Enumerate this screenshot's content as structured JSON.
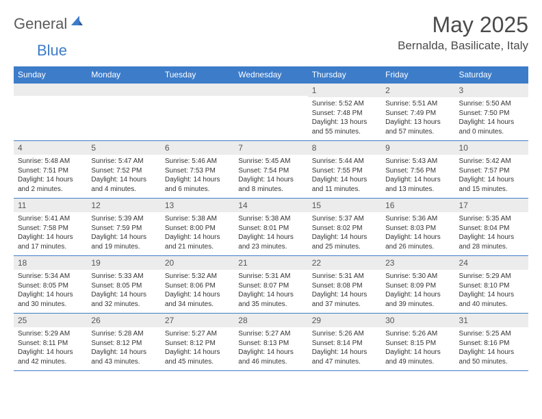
{
  "brand": {
    "part1": "General",
    "part2": "Blue"
  },
  "title": "May 2025",
  "location": "Bernalda, Basilicate, Italy",
  "colors": {
    "header_bg": "#3d7cc9",
    "header_text": "#ffffff",
    "daynum_bg": "#ececec",
    "border": "#3d7cc9",
    "text": "#333333",
    "logo_gray": "#5a5a5a",
    "logo_blue": "#3d7cc9",
    "page_bg": "#ffffff"
  },
  "typography": {
    "title_fontsize": 32,
    "location_fontsize": 17,
    "dayhead_fontsize": 12,
    "daynum_fontsize": 12,
    "body_fontsize": 10
  },
  "day_names": [
    "Sunday",
    "Monday",
    "Tuesday",
    "Wednesday",
    "Thursday",
    "Friday",
    "Saturday"
  ],
  "weeks": [
    [
      {
        "n": "",
        "sunrise": "",
        "sunset": "",
        "daylight": ""
      },
      {
        "n": "",
        "sunrise": "",
        "sunset": "",
        "daylight": ""
      },
      {
        "n": "",
        "sunrise": "",
        "sunset": "",
        "daylight": ""
      },
      {
        "n": "",
        "sunrise": "",
        "sunset": "",
        "daylight": ""
      },
      {
        "n": "1",
        "sunrise": "Sunrise: 5:52 AM",
        "sunset": "Sunset: 7:48 PM",
        "daylight": "Daylight: 13 hours and 55 minutes."
      },
      {
        "n": "2",
        "sunrise": "Sunrise: 5:51 AM",
        "sunset": "Sunset: 7:49 PM",
        "daylight": "Daylight: 13 hours and 57 minutes."
      },
      {
        "n": "3",
        "sunrise": "Sunrise: 5:50 AM",
        "sunset": "Sunset: 7:50 PM",
        "daylight": "Daylight: 14 hours and 0 minutes."
      }
    ],
    [
      {
        "n": "4",
        "sunrise": "Sunrise: 5:48 AM",
        "sunset": "Sunset: 7:51 PM",
        "daylight": "Daylight: 14 hours and 2 minutes."
      },
      {
        "n": "5",
        "sunrise": "Sunrise: 5:47 AM",
        "sunset": "Sunset: 7:52 PM",
        "daylight": "Daylight: 14 hours and 4 minutes."
      },
      {
        "n": "6",
        "sunrise": "Sunrise: 5:46 AM",
        "sunset": "Sunset: 7:53 PM",
        "daylight": "Daylight: 14 hours and 6 minutes."
      },
      {
        "n": "7",
        "sunrise": "Sunrise: 5:45 AM",
        "sunset": "Sunset: 7:54 PM",
        "daylight": "Daylight: 14 hours and 8 minutes."
      },
      {
        "n": "8",
        "sunrise": "Sunrise: 5:44 AM",
        "sunset": "Sunset: 7:55 PM",
        "daylight": "Daylight: 14 hours and 11 minutes."
      },
      {
        "n": "9",
        "sunrise": "Sunrise: 5:43 AM",
        "sunset": "Sunset: 7:56 PM",
        "daylight": "Daylight: 14 hours and 13 minutes."
      },
      {
        "n": "10",
        "sunrise": "Sunrise: 5:42 AM",
        "sunset": "Sunset: 7:57 PM",
        "daylight": "Daylight: 14 hours and 15 minutes."
      }
    ],
    [
      {
        "n": "11",
        "sunrise": "Sunrise: 5:41 AM",
        "sunset": "Sunset: 7:58 PM",
        "daylight": "Daylight: 14 hours and 17 minutes."
      },
      {
        "n": "12",
        "sunrise": "Sunrise: 5:39 AM",
        "sunset": "Sunset: 7:59 PM",
        "daylight": "Daylight: 14 hours and 19 minutes."
      },
      {
        "n": "13",
        "sunrise": "Sunrise: 5:38 AM",
        "sunset": "Sunset: 8:00 PM",
        "daylight": "Daylight: 14 hours and 21 minutes."
      },
      {
        "n": "14",
        "sunrise": "Sunrise: 5:38 AM",
        "sunset": "Sunset: 8:01 PM",
        "daylight": "Daylight: 14 hours and 23 minutes."
      },
      {
        "n": "15",
        "sunrise": "Sunrise: 5:37 AM",
        "sunset": "Sunset: 8:02 PM",
        "daylight": "Daylight: 14 hours and 25 minutes."
      },
      {
        "n": "16",
        "sunrise": "Sunrise: 5:36 AM",
        "sunset": "Sunset: 8:03 PM",
        "daylight": "Daylight: 14 hours and 26 minutes."
      },
      {
        "n": "17",
        "sunrise": "Sunrise: 5:35 AM",
        "sunset": "Sunset: 8:04 PM",
        "daylight": "Daylight: 14 hours and 28 minutes."
      }
    ],
    [
      {
        "n": "18",
        "sunrise": "Sunrise: 5:34 AM",
        "sunset": "Sunset: 8:05 PM",
        "daylight": "Daylight: 14 hours and 30 minutes."
      },
      {
        "n": "19",
        "sunrise": "Sunrise: 5:33 AM",
        "sunset": "Sunset: 8:05 PM",
        "daylight": "Daylight: 14 hours and 32 minutes."
      },
      {
        "n": "20",
        "sunrise": "Sunrise: 5:32 AM",
        "sunset": "Sunset: 8:06 PM",
        "daylight": "Daylight: 14 hours and 34 minutes."
      },
      {
        "n": "21",
        "sunrise": "Sunrise: 5:31 AM",
        "sunset": "Sunset: 8:07 PM",
        "daylight": "Daylight: 14 hours and 35 minutes."
      },
      {
        "n": "22",
        "sunrise": "Sunrise: 5:31 AM",
        "sunset": "Sunset: 8:08 PM",
        "daylight": "Daylight: 14 hours and 37 minutes."
      },
      {
        "n": "23",
        "sunrise": "Sunrise: 5:30 AM",
        "sunset": "Sunset: 8:09 PM",
        "daylight": "Daylight: 14 hours and 39 minutes."
      },
      {
        "n": "24",
        "sunrise": "Sunrise: 5:29 AM",
        "sunset": "Sunset: 8:10 PM",
        "daylight": "Daylight: 14 hours and 40 minutes."
      }
    ],
    [
      {
        "n": "25",
        "sunrise": "Sunrise: 5:29 AM",
        "sunset": "Sunset: 8:11 PM",
        "daylight": "Daylight: 14 hours and 42 minutes."
      },
      {
        "n": "26",
        "sunrise": "Sunrise: 5:28 AM",
        "sunset": "Sunset: 8:12 PM",
        "daylight": "Daylight: 14 hours and 43 minutes."
      },
      {
        "n": "27",
        "sunrise": "Sunrise: 5:27 AM",
        "sunset": "Sunset: 8:12 PM",
        "daylight": "Daylight: 14 hours and 45 minutes."
      },
      {
        "n": "28",
        "sunrise": "Sunrise: 5:27 AM",
        "sunset": "Sunset: 8:13 PM",
        "daylight": "Daylight: 14 hours and 46 minutes."
      },
      {
        "n": "29",
        "sunrise": "Sunrise: 5:26 AM",
        "sunset": "Sunset: 8:14 PM",
        "daylight": "Daylight: 14 hours and 47 minutes."
      },
      {
        "n": "30",
        "sunrise": "Sunrise: 5:26 AM",
        "sunset": "Sunset: 8:15 PM",
        "daylight": "Daylight: 14 hours and 49 minutes."
      },
      {
        "n": "31",
        "sunrise": "Sunrise: 5:25 AM",
        "sunset": "Sunset: 8:16 PM",
        "daylight": "Daylight: 14 hours and 50 minutes."
      }
    ]
  ]
}
